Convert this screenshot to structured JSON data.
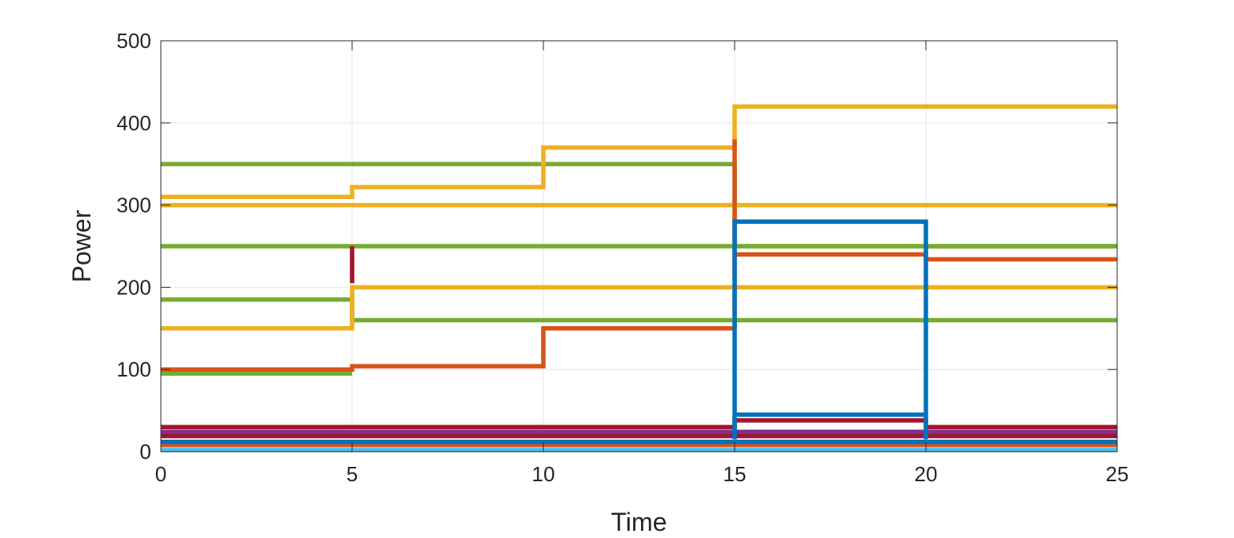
{
  "chart_data": {
    "type": "line",
    "title": "",
    "xlabel": "Time",
    "ylabel": "Power",
    "xlim": [
      0,
      25
    ],
    "ylim": [
      0,
      500
    ],
    "xticks": [
      0,
      5,
      10,
      15,
      20,
      25
    ],
    "yticks": [
      0,
      100,
      200,
      300,
      400,
      500
    ],
    "grid": true,
    "legend": "none",
    "step": "post",
    "series": [
      {
        "color": "#77AC30",
        "x": [
          0,
          15,
          15,
          25
        ],
        "y": [
          350,
          350,
          250,
          250
        ]
      },
      {
        "color": "#77AC30",
        "x": [
          0,
          25
        ],
        "y": [
          250,
          250
        ]
      },
      {
        "color": "#77AC30",
        "x": [
          0,
          5,
          5,
          25
        ],
        "y": [
          185,
          185,
          160,
          160
        ]
      },
      {
        "color": "#77AC30",
        "x": [
          0,
          5
        ],
        "y": [
          95,
          95
        ]
      },
      {
        "color": "#EDB120",
        "x": [
          0,
          5,
          5,
          10,
          10,
          15,
          15,
          25
        ],
        "y": [
          310,
          310,
          322,
          322,
          370,
          370,
          420,
          420
        ]
      },
      {
        "color": "#EDB120",
        "x": [
          0,
          25
        ],
        "y": [
          300,
          300
        ]
      },
      {
        "color": "#EDB120",
        "x": [
          0,
          5,
          5,
          25
        ],
        "y": [
          150,
          150,
          200,
          200
        ]
      },
      {
        "color": "#D95319",
        "x": [
          0,
          5,
          5,
          10,
          10,
          15,
          15,
          20,
          20,
          25
        ],
        "y": [
          100,
          100,
          104,
          104,
          150,
          150,
          240,
          240,
          234,
          234
        ]
      },
      {
        "color": "#D95319",
        "x": [
          15,
          15
        ],
        "y": [
          380,
          240
        ]
      },
      {
        "color": "#D95319",
        "x": [
          0,
          25
        ],
        "y": [
          8,
          8
        ]
      },
      {
        "color": "#A2142F",
        "x": [
          5,
          5
        ],
        "y": [
          250,
          205
        ]
      },
      {
        "color": "#A2142F",
        "x": [
          0,
          15,
          15,
          20,
          20,
          25
        ],
        "y": [
          30,
          30,
          38,
          38,
          30,
          30
        ]
      },
      {
        "color": "#A2142F",
        "x": [
          0,
          25
        ],
        "y": [
          19,
          19
        ]
      },
      {
        "color": "#7E2F8E",
        "x": [
          0,
          25
        ],
        "y": [
          24,
          24
        ]
      },
      {
        "color": "#0072BD",
        "x": [
          15,
          15,
          20,
          20
        ],
        "y": [
          15,
          280,
          280,
          15
        ]
      },
      {
        "color": "#0072BD",
        "x": [
          15,
          20
        ],
        "y": [
          45,
          45
        ]
      },
      {
        "color": "#0072BD",
        "x": [
          0,
          25
        ],
        "y": [
          12,
          12
        ]
      },
      {
        "color": "#4DBEEE",
        "x": [
          0,
          25
        ],
        "y": [
          2,
          2
        ]
      }
    ]
  }
}
